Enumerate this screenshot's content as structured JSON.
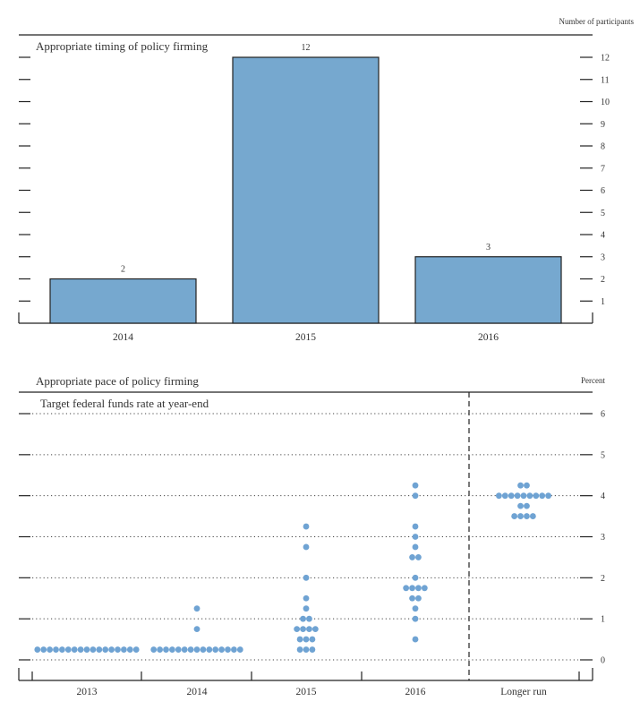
{
  "chart_data": [
    {
      "type": "bar",
      "title": "Appropriate timing of policy firming",
      "ylabel": "Number of participants",
      "categories": [
        "2014",
        "2015",
        "2016"
      ],
      "values": [
        2,
        12,
        3
      ],
      "value_labels": [
        "2",
        "12",
        "3"
      ],
      "ylim": [
        0,
        13
      ],
      "yticks": [
        1,
        2,
        3,
        4,
        5,
        6,
        7,
        8,
        9,
        10,
        11,
        12
      ],
      "ytick_labels": [
        "1",
        "2",
        "3",
        "4",
        "5",
        "6",
        "7",
        "8",
        "9",
        "10",
        "11",
        "12"
      ],
      "grid": false,
      "bar_color": "#76a8cf"
    },
    {
      "type": "scatter",
      "title": "Appropriate pace of policy firming",
      "subtitle": "Target federal funds rate at year-end",
      "ylabel": "Percent",
      "categories": [
        "2013",
        "2014",
        "2015",
        "2016",
        "Longer run"
      ],
      "ylim": [
        0,
        6.5
      ],
      "yticks": [
        0,
        1,
        2,
        3,
        4,
        5,
        6
      ],
      "ytick_labels": [
        "0",
        "1",
        "2",
        "3",
        "4",
        "5",
        "6"
      ],
      "grid": true,
      "dot_color": "#6fa3d3",
      "series": [
        {
          "name": "2013",
          "points": [
            {
              "rate": 0.25,
              "count": 17
            }
          ]
        },
        {
          "name": "2014",
          "points": [
            {
              "rate": 1.25,
              "count": 1
            },
            {
              "rate": 0.75,
              "count": 1
            },
            {
              "rate": 0.25,
              "count": 15
            }
          ]
        },
        {
          "name": "2015",
          "points": [
            {
              "rate": 3.25,
              "count": 1
            },
            {
              "rate": 2.75,
              "count": 1
            },
            {
              "rate": 2.0,
              "count": 1
            },
            {
              "rate": 1.5,
              "count": 1
            },
            {
              "rate": 1.25,
              "count": 1
            },
            {
              "rate": 1.0,
              "count": 2
            },
            {
              "rate": 0.75,
              "count": 4
            },
            {
              "rate": 0.5,
              "count": 3
            },
            {
              "rate": 0.25,
              "count": 3
            }
          ]
        },
        {
          "name": "2016",
          "points": [
            {
              "rate": 4.25,
              "count": 1
            },
            {
              "rate": 4.0,
              "count": 1
            },
            {
              "rate": 3.25,
              "count": 1
            },
            {
              "rate": 3.0,
              "count": 1
            },
            {
              "rate": 2.75,
              "count": 1
            },
            {
              "rate": 2.5,
              "count": 2
            },
            {
              "rate": 2.0,
              "count": 1
            },
            {
              "rate": 1.75,
              "count": 4
            },
            {
              "rate": 1.5,
              "count": 2
            },
            {
              "rate": 1.25,
              "count": 1
            },
            {
              "rate": 1.0,
              "count": 1
            },
            {
              "rate": 0.5,
              "count": 1
            }
          ]
        },
        {
          "name": "Longer run",
          "points": [
            {
              "rate": 4.25,
              "count": 2
            },
            {
              "rate": 4.0,
              "count": 9
            },
            {
              "rate": 3.75,
              "count": 2
            },
            {
              "rate": 3.5,
              "count": 4
            }
          ]
        }
      ]
    }
  ]
}
